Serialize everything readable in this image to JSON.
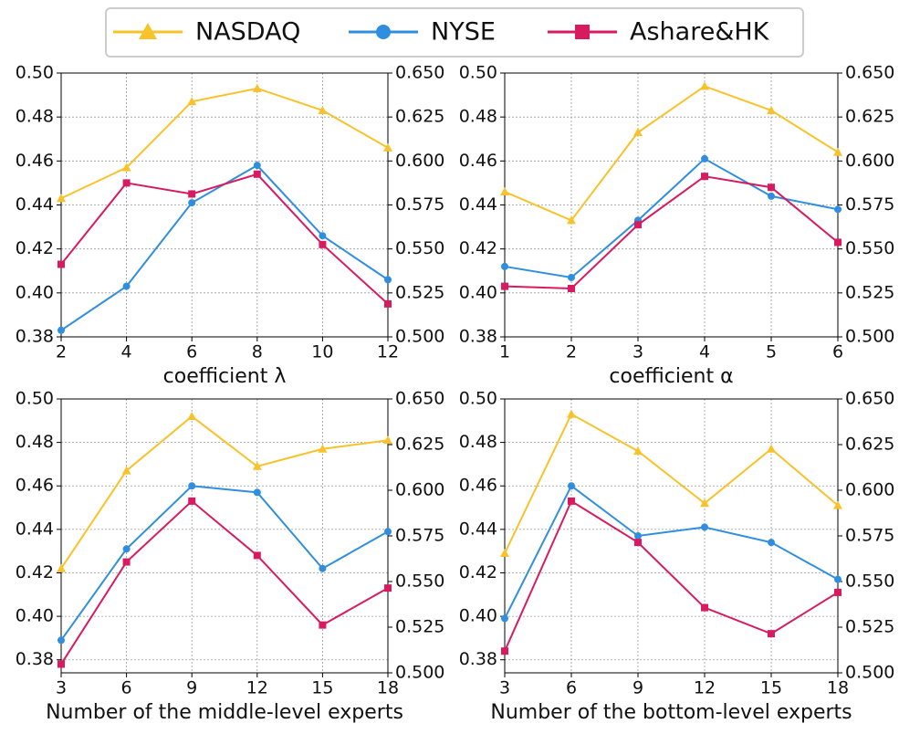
{
  "legend": [
    {
      "name": "NASDAQ",
      "color": "#f8c22a",
      "marker": "triangle"
    },
    {
      "name": "NYSE",
      "color": "#2f8ee0",
      "marker": "circle"
    },
    {
      "name": "Ashare&HK",
      "color": "#d81b60",
      "marker": "square"
    }
  ],
  "chart_data": [
    {
      "type": "line",
      "xlabel": "coefficient λ",
      "x": [
        2,
        4,
        6,
        8,
        10,
        12
      ],
      "xlim": [
        2,
        12
      ],
      "xticks": [
        2,
        4,
        6,
        8,
        10,
        12
      ],
      "ylim": [
        0.38,
        0.5
      ],
      "yticks": [
        {
          "value": 0.38,
          "label": "0.38"
        },
        {
          "value": 0.4,
          "label": "0.40"
        },
        {
          "value": 0.42,
          "label": "0.42"
        },
        {
          "value": 0.44,
          "label": "0.44"
        },
        {
          "value": 0.46,
          "label": "0.46"
        },
        {
          "value": 0.48,
          "label": "0.48"
        },
        {
          "value": 0.5,
          "label": "0.50"
        }
      ],
      "y2lim": [
        0.5,
        0.65
      ],
      "y2ticks": [
        {
          "value": 0.5,
          "label": "0.500"
        },
        {
          "value": 0.525,
          "label": "0.525"
        },
        {
          "value": 0.55,
          "label": "0.550"
        },
        {
          "value": 0.575,
          "label": "0.575"
        },
        {
          "value": 0.6,
          "label": "0.600"
        },
        {
          "value": 0.625,
          "label": "0.625"
        },
        {
          "value": 0.65,
          "label": "0.650"
        }
      ],
      "grid": true,
      "series": [
        {
          "values": [
            0.443,
            0.457,
            0.487,
            0.493,
            0.483,
            0.466
          ]
        },
        {
          "values": [
            0.383,
            0.403,
            0.441,
            0.458,
            0.426,
            0.406
          ]
        },
        {
          "values": [
            0.413,
            0.45,
            0.445,
            0.454,
            0.422,
            0.395
          ]
        }
      ]
    },
    {
      "type": "line",
      "xlabel": "coefficient α",
      "x": [
        1,
        2,
        3,
        4,
        5,
        6
      ],
      "xlim": [
        1,
        6
      ],
      "xticks": [
        1,
        2,
        3,
        4,
        5,
        6
      ],
      "ylim": [
        0.38,
        0.5
      ],
      "yticks": [
        {
          "value": 0.38,
          "label": "0.38"
        },
        {
          "value": 0.4,
          "label": "0.40"
        },
        {
          "value": 0.42,
          "label": "0.42"
        },
        {
          "value": 0.44,
          "label": "0.44"
        },
        {
          "value": 0.46,
          "label": "0.46"
        },
        {
          "value": 0.48,
          "label": "0.48"
        },
        {
          "value": 0.5,
          "label": "0.50"
        }
      ],
      "y2lim": [
        0.5,
        0.65
      ],
      "y2ticks": [
        {
          "value": 0.5,
          "label": "0.500"
        },
        {
          "value": 0.525,
          "label": "0.525"
        },
        {
          "value": 0.55,
          "label": "0.550"
        },
        {
          "value": 0.575,
          "label": "0.575"
        },
        {
          "value": 0.6,
          "label": "0.600"
        },
        {
          "value": 0.625,
          "label": "0.625"
        },
        {
          "value": 0.65,
          "label": "0.650"
        }
      ],
      "grid": true,
      "series": [
        {
          "values": [
            0.446,
            0.433,
            0.473,
            0.494,
            0.483,
            0.464
          ]
        },
        {
          "values": [
            0.412,
            0.407,
            0.433,
            0.461,
            0.444,
            0.438
          ]
        },
        {
          "values": [
            0.403,
            0.402,
            0.431,
            0.453,
            0.448,
            0.423
          ]
        }
      ]
    },
    {
      "type": "line",
      "xlabel": "Number of the middle-level experts",
      "x": [
        3,
        6,
        9,
        12,
        15,
        18
      ],
      "xlim": [
        3,
        18
      ],
      "xticks": [
        3,
        6,
        9,
        12,
        15,
        18
      ],
      "ylim": [
        0.374,
        0.5
      ],
      "yticks": [
        {
          "value": 0.38,
          "label": "0.38"
        },
        {
          "value": 0.4,
          "label": "0.40"
        },
        {
          "value": 0.42,
          "label": "0.42"
        },
        {
          "value": 0.44,
          "label": "0.44"
        },
        {
          "value": 0.46,
          "label": "0.46"
        },
        {
          "value": 0.48,
          "label": "0.48"
        },
        {
          "value": 0.5,
          "label": "0.50"
        }
      ],
      "y2lim": [
        0.5,
        0.65
      ],
      "y2ticks": [
        {
          "value": 0.5,
          "label": "0.500"
        },
        {
          "value": 0.525,
          "label": "0.525"
        },
        {
          "value": 0.55,
          "label": "0.550"
        },
        {
          "value": 0.575,
          "label": "0.575"
        },
        {
          "value": 0.6,
          "label": "0.600"
        },
        {
          "value": 0.625,
          "label": "0.625"
        },
        {
          "value": 0.65,
          "label": "0.650"
        }
      ],
      "grid": true,
      "series": [
        {
          "values": [
            0.422,
            0.467,
            0.492,
            0.469,
            0.477,
            0.481
          ]
        },
        {
          "values": [
            0.389,
            0.431,
            0.46,
            0.457,
            0.422,
            0.439
          ]
        },
        {
          "values": [
            0.378,
            0.425,
            0.453,
            0.428,
            0.396,
            0.413
          ]
        }
      ]
    },
    {
      "type": "line",
      "xlabel": "Number of the bottom-level experts",
      "x": [
        3,
        6,
        9,
        12,
        15,
        18
      ],
      "xlim": [
        3,
        18
      ],
      "xticks": [
        3,
        6,
        9,
        12,
        15,
        18
      ],
      "ylim": [
        0.374,
        0.5
      ],
      "yticks": [
        {
          "value": 0.38,
          "label": "0.38"
        },
        {
          "value": 0.4,
          "label": "0.40"
        },
        {
          "value": 0.42,
          "label": "0.42"
        },
        {
          "value": 0.44,
          "label": "0.44"
        },
        {
          "value": 0.46,
          "label": "0.46"
        },
        {
          "value": 0.48,
          "label": "0.48"
        },
        {
          "value": 0.5,
          "label": "0.50"
        }
      ],
      "y2lim": [
        0.5,
        0.65
      ],
      "y2ticks": [
        {
          "value": 0.5,
          "label": "0.500"
        },
        {
          "value": 0.525,
          "label": "0.525"
        },
        {
          "value": 0.55,
          "label": "0.550"
        },
        {
          "value": 0.575,
          "label": "0.575"
        },
        {
          "value": 0.6,
          "label": "0.600"
        },
        {
          "value": 0.625,
          "label": "0.625"
        },
        {
          "value": 0.65,
          "label": "0.650"
        }
      ],
      "grid": true,
      "series": [
        {
          "values": [
            0.429,
            0.493,
            0.476,
            0.452,
            0.477,
            0.451
          ]
        },
        {
          "values": [
            0.399,
            0.46,
            0.437,
            0.441,
            0.434,
            0.417
          ]
        },
        {
          "values": [
            0.384,
            0.453,
            0.434,
            0.404,
            0.392,
            0.411
          ]
        }
      ]
    }
  ]
}
